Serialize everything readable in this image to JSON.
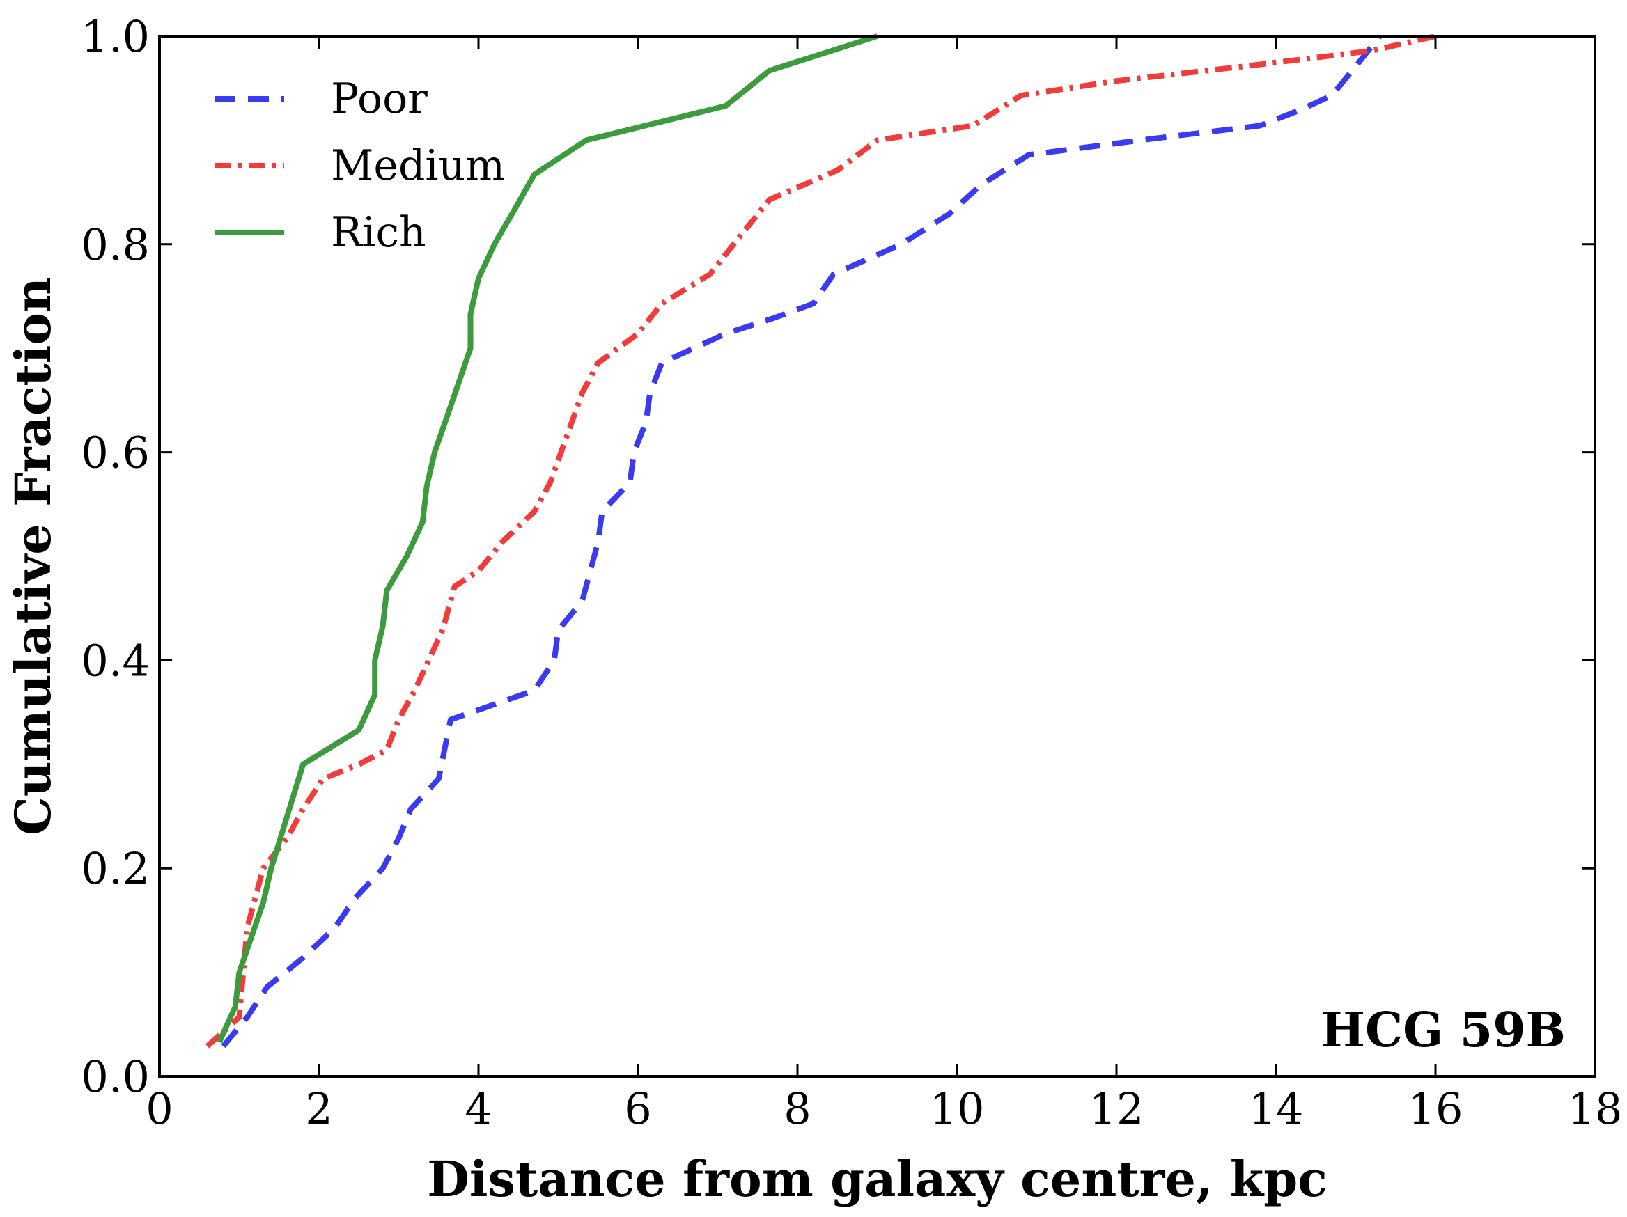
{
  "chart_data": {
    "type": "line",
    "title": "",
    "xlabel": "Distance from galaxy centre, kpc",
    "ylabel": "Cumulative Fraction",
    "xlim": [
      0,
      18
    ],
    "ylim": [
      0.0,
      1.0
    ],
    "xticks": [
      0,
      2,
      4,
      6,
      8,
      10,
      12,
      14,
      16,
      18
    ],
    "xtick_labels": [
      "0",
      "2",
      "4",
      "6",
      "8",
      "10",
      "12",
      "14",
      "16",
      "18"
    ],
    "yticks": [
      0.0,
      0.2,
      0.4,
      0.6,
      0.8,
      1.0
    ],
    "ytick_labels": [
      "0.0",
      "0.2",
      "0.4",
      "0.6",
      "0.8",
      "1.0"
    ],
    "grid": false,
    "legend_position": "top-left",
    "annotation": "HCG 59B",
    "series": [
      {
        "name": "Poor",
        "color": "#3a3af0",
        "style": "dashed",
        "points": [
          [
            0.8,
            0.029
          ],
          [
            1.1,
            0.057
          ],
          [
            1.35,
            0.086
          ],
          [
            1.8,
            0.114
          ],
          [
            2.2,
            0.143
          ],
          [
            2.45,
            0.171
          ],
          [
            2.8,
            0.2
          ],
          [
            3.0,
            0.229
          ],
          [
            3.15,
            0.257
          ],
          [
            3.5,
            0.286
          ],
          [
            3.65,
            0.343
          ],
          [
            4.7,
            0.371
          ],
          [
            4.95,
            0.4
          ],
          [
            5.0,
            0.429
          ],
          [
            5.3,
            0.457
          ],
          [
            5.5,
            0.514
          ],
          [
            5.55,
            0.543
          ],
          [
            5.9,
            0.571
          ],
          [
            5.95,
            0.6
          ],
          [
            6.1,
            0.629
          ],
          [
            6.15,
            0.657
          ],
          [
            6.3,
            0.686
          ],
          [
            7.1,
            0.714
          ],
          [
            7.7,
            0.729
          ],
          [
            8.2,
            0.743
          ],
          [
            8.45,
            0.771
          ],
          [
            9.3,
            0.8
          ],
          [
            9.9,
            0.829
          ],
          [
            10.3,
            0.857
          ],
          [
            10.9,
            0.886
          ],
          [
            12.3,
            0.9
          ],
          [
            13.8,
            0.914
          ],
          [
            14.3,
            0.929
          ],
          [
            14.7,
            0.943
          ],
          [
            15.0,
            0.971
          ],
          [
            15.3,
            1.0
          ]
        ]
      },
      {
        "name": "Medium",
        "color": "#f23c3c",
        "style": "dash-dot",
        "points": [
          [
            0.6,
            0.029
          ],
          [
            1.0,
            0.057
          ],
          [
            1.1,
            0.143
          ],
          [
            1.3,
            0.2
          ],
          [
            1.6,
            0.229
          ],
          [
            1.8,
            0.257
          ],
          [
            2.05,
            0.286
          ],
          [
            2.5,
            0.3
          ],
          [
            2.85,
            0.314
          ],
          [
            3.0,
            0.343
          ],
          [
            3.2,
            0.371
          ],
          [
            3.55,
            0.429
          ],
          [
            3.7,
            0.471
          ],
          [
            4.0,
            0.486
          ],
          [
            4.3,
            0.514
          ],
          [
            4.7,
            0.543
          ],
          [
            4.9,
            0.571
          ],
          [
            5.3,
            0.657
          ],
          [
            5.5,
            0.686
          ],
          [
            6.0,
            0.714
          ],
          [
            6.3,
            0.743
          ],
          [
            6.9,
            0.771
          ],
          [
            7.2,
            0.8
          ],
          [
            7.65,
            0.843
          ],
          [
            8.5,
            0.871
          ],
          [
            9.0,
            0.9
          ],
          [
            10.2,
            0.914
          ],
          [
            10.8,
            0.943
          ],
          [
            12.0,
            0.957
          ],
          [
            13.6,
            0.971
          ],
          [
            15.2,
            0.986
          ],
          [
            16.0,
            1.0
          ]
        ]
      },
      {
        "name": "Rich",
        "color": "#3c9b3c",
        "style": "solid",
        "points": [
          [
            0.75,
            0.033
          ],
          [
            0.95,
            0.067
          ],
          [
            1.0,
            0.1
          ],
          [
            1.3,
            0.167
          ],
          [
            1.4,
            0.2
          ],
          [
            1.8,
            0.3
          ],
          [
            2.5,
            0.333
          ],
          [
            2.7,
            0.367
          ],
          [
            2.7,
            0.4
          ],
          [
            2.8,
            0.433
          ],
          [
            2.85,
            0.467
          ],
          [
            3.1,
            0.5
          ],
          [
            3.3,
            0.533
          ],
          [
            3.35,
            0.567
          ],
          [
            3.45,
            0.6
          ],
          [
            3.6,
            0.633
          ],
          [
            3.9,
            0.7
          ],
          [
            3.9,
            0.733
          ],
          [
            4.0,
            0.767
          ],
          [
            4.2,
            0.8
          ],
          [
            4.45,
            0.833
          ],
          [
            4.7,
            0.867
          ],
          [
            5.35,
            0.9
          ],
          [
            7.1,
            0.933
          ],
          [
            7.65,
            0.967
          ],
          [
            9.0,
            1.0
          ]
        ]
      }
    ]
  }
}
